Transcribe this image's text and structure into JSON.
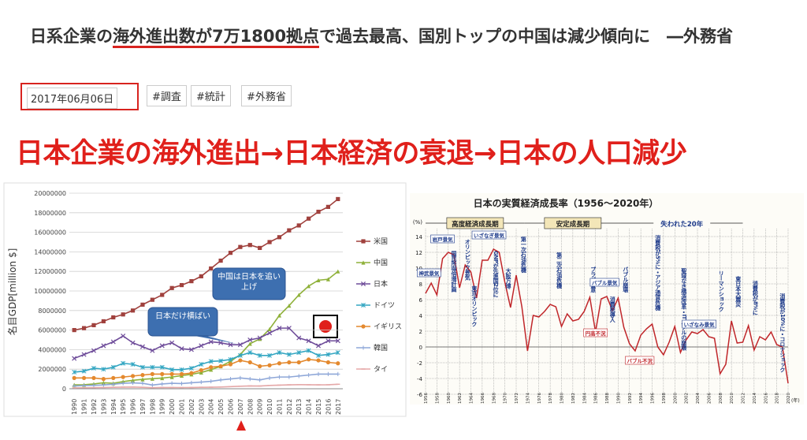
{
  "header": {
    "title_parts": [
      "日系企業の",
      "海外進出数が7万1800拠点",
      "で過去最高、国別トップの中国は減少傾向に　―外務省"
    ],
    "date": "2017年06月06日",
    "tags": [
      "#調査",
      "#統計",
      "#外務省"
    ]
  },
  "headline": "日本企業の海外進出→日本経済の衰退→日本の人口減少",
  "chart_data": [
    {
      "type": "line",
      "y_label": "名目GDP[million $]",
      "categories": [
        "1990",
        "1991",
        "1992",
        "1993",
        "1994",
        "1995",
        "1996",
        "1997",
        "1998",
        "1999",
        "2000",
        "2001",
        "2002",
        "2003",
        "2004",
        "2005",
        "2006",
        "2007",
        "2008",
        "2009",
        "2010",
        "2011",
        "2012",
        "2013",
        "2014",
        "2015",
        "2016",
        "2017"
      ],
      "ylim": [
        0,
        20000000
      ],
      "yticks": [
        0,
        2000000,
        4000000,
        6000000,
        8000000,
        10000000,
        12000000,
        14000000,
        16000000,
        18000000,
        20000000
      ],
      "grid": true,
      "legend": "right",
      "annotations": [
        "中国は日本を追い上げ",
        "日本だけ横ばい"
      ],
      "series": [
        {
          "name": "米国",
          "color": "#a0413d",
          "marker": "square",
          "values": [
            6000000,
            6200000,
            6500000,
            6900000,
            7300000,
            7600000,
            8000000,
            8600000,
            9100000,
            9600000,
            10300000,
            10600000,
            11000000,
            11500000,
            12300000,
            13100000,
            13900000,
            14500000,
            14700000,
            14400000,
            15000000,
            15500000,
            16200000,
            16700000,
            17400000,
            18100000,
            18600000,
            19400000
          ]
        },
        {
          "name": "中国",
          "color": "#8fb13a",
          "marker": "triangle",
          "values": [
            400000,
            410000,
            490000,
            610000,
            560000,
            730000,
            860000,
            960000,
            1030000,
            1090000,
            1200000,
            1340000,
            1470000,
            1660000,
            1950000,
            2300000,
            2800000,
            3500000,
            4600000,
            5100000,
            6100000,
            7500000,
            8500000,
            9600000,
            10500000,
            11100000,
            11200000,
            12000000
          ]
        },
        {
          "name": "日本",
          "color": "#6f4d9a",
          "marker": "cross",
          "values": [
            3100000,
            3500000,
            3900000,
            4400000,
            4800000,
            5400000,
            4700000,
            4300000,
            3900000,
            4400000,
            4700000,
            4100000,
            4000000,
            4400000,
            4800000,
            4700000,
            4500000,
            4500000,
            5000000,
            5200000,
            5700000,
            6200000,
            6200000,
            5200000,
            4900000,
            4400000,
            4900000,
            4900000
          ]
        },
        {
          "name": "ドイツ",
          "color": "#33a6c2",
          "marker": "star",
          "values": [
            1700000,
            1800000,
            2100000,
            2000000,
            2200000,
            2600000,
            2500000,
            2200000,
            2200000,
            2200000,
            1950000,
            1950000,
            2100000,
            2500000,
            2800000,
            2850000,
            3000000,
            3400000,
            3700000,
            3400000,
            3400000,
            3700000,
            3500000,
            3700000,
            3900000,
            3400000,
            3500000,
            3700000
          ]
        },
        {
          "name": "イギリス",
          "color": "#e4892e",
          "marker": "circle",
          "values": [
            1100000,
            1100000,
            1100000,
            1000000,
            1100000,
            1200000,
            1300000,
            1400000,
            1500000,
            1500000,
            1500000,
            1500000,
            1600000,
            1900000,
            2200000,
            2300000,
            2500000,
            2900000,
            2700000,
            2300000,
            2400000,
            2600000,
            2700000,
            2700000,
            3000000,
            2900000,
            2700000,
            2600000
          ]
        },
        {
          "name": "韓国",
          "color": "#8ea7d8",
          "marker": "plus",
          "values": [
            280000,
            330000,
            350000,
            390000,
            460000,
            560000,
            600000,
            560000,
            380000,
            490000,
            560000,
            530000,
            610000,
            680000,
            760000,
            900000,
            1000000,
            1100000,
            1000000,
            900000,
            1100000,
            1200000,
            1200000,
            1300000,
            1400000,
            1500000,
            1500000,
            1500000
          ]
        },
        {
          "name": "タイ",
          "color": "#e5a8a8",
          "marker": "dash",
          "values": [
            90000,
            100000,
            110000,
            130000,
            150000,
            170000,
            180000,
            150000,
            110000,
            130000,
            130000,
            120000,
            130000,
            150000,
            160000,
            180000,
            220000,
            260000,
            290000,
            280000,
            340000,
            370000,
            400000,
            420000,
            410000,
            400000,
            410000,
            460000
          ]
        }
      ]
    },
    {
      "type": "line",
      "title": "日本の実質経済成長率（1956～2020年）",
      "y_label": "(%)",
      "x_label": "(年)",
      "color": "#c0262a",
      "x": [
        1956,
        1957,
        1958,
        1959,
        1960,
        1961,
        1962,
        1963,
        1964,
        1965,
        1966,
        1967,
        1968,
        1969,
        1970,
        1971,
        1972,
        1973,
        1974,
        1975,
        1976,
        1977,
        1978,
        1979,
        1980,
        1981,
        1982,
        1983,
        1984,
        1985,
        1986,
        1987,
        1988,
        1989,
        1990,
        1991,
        1992,
        1993,
        1994,
        1995,
        1996,
        1997,
        1998,
        1999,
        2000,
        2001,
        2002,
        2003,
        2004,
        2005,
        2006,
        2007,
        2008,
        2009,
        2010,
        2011,
        2012,
        2013,
        2014,
        2015,
        2016,
        2017,
        2018,
        2019,
        2020
      ],
      "values": [
        6.8,
        8.1,
        6.6,
        11.2,
        12.0,
        11.7,
        7.5,
        10.4,
        9.5,
        6.2,
        11.0,
        11.0,
        12.4,
        12.0,
        8.2,
        5.0,
        9.1,
        5.1,
        -0.5,
        4.0,
        3.8,
        4.5,
        5.4,
        5.1,
        2.6,
        4.2,
        3.3,
        3.5,
        4.5,
        6.3,
        1.9,
        6.1,
        6.4,
        4.6,
        6.2,
        2.5,
        0.4,
        -0.5,
        1.5,
        2.3,
        2.9,
        0.0,
        -1.0,
        0.6,
        2.6,
        -0.7,
        0.9,
        1.9,
        1.7,
        2.2,
        1.3,
        1.1,
        -3.4,
        -2.2,
        3.3,
        0.5,
        0.6,
        2.7,
        -0.4,
        1.3,
        0.9,
        1.9,
        0.3,
        0.0,
        -4.6
      ],
      "xlim": [
        1956,
        2020
      ],
      "xticks": [
        1956,
        1958,
        1960,
        1962,
        1964,
        1966,
        1968,
        1970,
        1972,
        1974,
        1976,
        1978,
        1980,
        1982,
        1984,
        1986,
        1988,
        1990,
        1992,
        1994,
        1996,
        1998,
        2000,
        2002,
        2004,
        2006,
        2008,
        2010,
        2012,
        2014,
        2016,
        2018,
        2020
      ],
      "ylim": [
        -6,
        14
      ],
      "yticks": [
        -6,
        -4,
        -2,
        0,
        2,
        4,
        6,
        8,
        10,
        12,
        14
      ],
      "grid": true,
      "periods": [
        "高度経済成長期",
        "安定成長期",
        "失われた20年"
      ],
      "annotations": [
        "神武景気",
        "岩戸景気",
        "国民所得倍増計画",
        "オリンピック景気",
        "東京オリンピック",
        "いざなぎ景気",
        "GNPが先進国2位に",
        "大阪万博",
        "第一次石油危機",
        "第二次石油危機",
        "プラザ合意",
        "バブル景気",
        "円高不況",
        "消費税導入",
        "バブル崩壊",
        "バブル不況",
        "消費税が5%に・アジア通貨危機",
        "聖域なき構造改革・ITバブルの崩壊",
        "いざなみ景気",
        "リーマンショック",
        "東日本大震災",
        "消費税が8%に",
        "消費税が10%に・コロナショック"
      ]
    }
  ]
}
